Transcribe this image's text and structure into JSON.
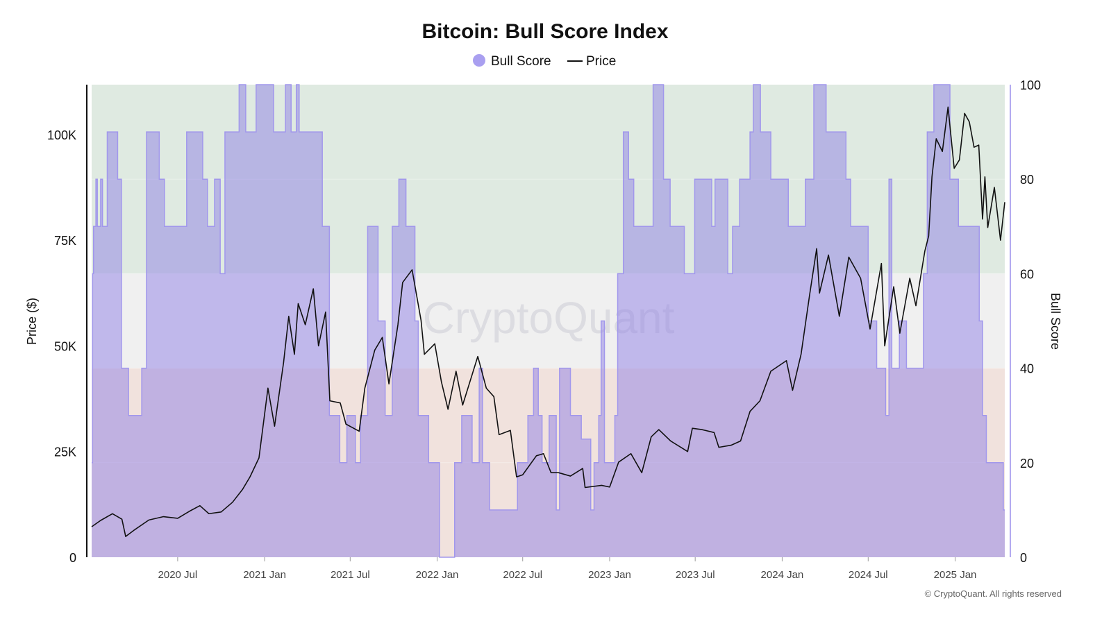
{
  "chart_data": {
    "type": "area",
    "title": "Bitcoin: Bull Score Index",
    "legend": [
      {
        "name": "Bull Score",
        "marker": "circle",
        "color": "#a99ff0"
      },
      {
        "name": "Price",
        "marker": "line",
        "color": "#111111"
      }
    ],
    "legend_position": "top-center",
    "watermark": "CryptoQuant",
    "footer": "© CryptoQuant. All rights reserved",
    "x_range": [
      "2020-01-01",
      "2025-04-16"
    ],
    "x_ticks": [
      {
        "date": "2020-07-01",
        "label": "2020 Jul"
      },
      {
        "date": "2021-01-01",
        "label": "2021 Jan"
      },
      {
        "date": "2021-07-01",
        "label": "2021 Jul"
      },
      {
        "date": "2022-01-01",
        "label": "2022 Jan"
      },
      {
        "date": "2022-07-01",
        "label": "2022 Jul"
      },
      {
        "date": "2023-01-01",
        "label": "2023 Jan"
      },
      {
        "date": "2023-07-01",
        "label": "2023 Jul"
      },
      {
        "date": "2024-01-01",
        "label": "2024 Jan"
      },
      {
        "date": "2024-07-01",
        "label": "2024 Jul"
      },
      {
        "date": "2025-01-01",
        "label": "2025 Jan"
      }
    ],
    "y_left": {
      "label": "Price ($)",
      "range": [
        0,
        111800
      ],
      "ticks": [
        {
          "value": 0,
          "label": "0"
        },
        {
          "value": 25000,
          "label": "25K"
        },
        {
          "value": 50000,
          "label": "50K"
        },
        {
          "value": 75000,
          "label": "75K"
        },
        {
          "value": 100000,
          "label": "100K"
        }
      ]
    },
    "y_right": {
      "label": "Bull Score",
      "range": [
        0,
        100
      ],
      "ticks": [
        {
          "value": 0,
          "label": "0"
        },
        {
          "value": 20,
          "label": "20"
        },
        {
          "value": 40,
          "label": "40"
        },
        {
          "value": 60,
          "label": "60"
        },
        {
          "value": 80,
          "label": "80"
        },
        {
          "value": 100,
          "label": "100"
        }
      ]
    },
    "bands": [
      {
        "from": 60,
        "to": 100,
        "color": "#dfeae1"
      },
      {
        "from": 40,
        "to": 60,
        "color": "#f0f0f0"
      },
      {
        "from": 0,
        "to": 40,
        "color": "#f1e2dd"
      }
    ],
    "series": [
      {
        "name": "Bull Score",
        "axis": "right",
        "style": "step-area",
        "points": [
          [
            "2020-01-01",
            20
          ],
          [
            "2020-01-03",
            60
          ],
          [
            "2020-01-05",
            70
          ],
          [
            "2020-01-10",
            80
          ],
          [
            "2020-01-13",
            70
          ],
          [
            "2020-01-20",
            80
          ],
          [
            "2020-01-24",
            70
          ],
          [
            "2020-02-03",
            90
          ],
          [
            "2020-02-25",
            80
          ],
          [
            "2020-03-04",
            40
          ],
          [
            "2020-03-19",
            30
          ],
          [
            "2020-04-16",
            40
          ],
          [
            "2020-04-26",
            90
          ],
          [
            "2020-05-23",
            80
          ],
          [
            "2020-06-03",
            70
          ],
          [
            "2020-07-20",
            90
          ],
          [
            "2020-08-23",
            80
          ],
          [
            "2020-09-02",
            70
          ],
          [
            "2020-09-17",
            80
          ],
          [
            "2020-09-29",
            60
          ],
          [
            "2020-10-09",
            90
          ],
          [
            "2020-11-08",
            100
          ],
          [
            "2020-11-22",
            90
          ],
          [
            "2020-12-14",
            100
          ],
          [
            "2021-01-20",
            90
          ],
          [
            "2021-02-14",
            100
          ],
          [
            "2021-02-26",
            90
          ],
          [
            "2021-03-09",
            100
          ],
          [
            "2021-03-15",
            90
          ],
          [
            "2021-05-03",
            70
          ],
          [
            "2021-05-18",
            30
          ],
          [
            "2021-06-09",
            20
          ],
          [
            "2021-06-24",
            30
          ],
          [
            "2021-07-12",
            20
          ],
          [
            "2021-07-23",
            30
          ],
          [
            "2021-08-07",
            70
          ],
          [
            "2021-08-29",
            50
          ],
          [
            "2021-09-13",
            30
          ],
          [
            "2021-09-28",
            70
          ],
          [
            "2021-10-12",
            80
          ],
          [
            "2021-10-27",
            70
          ],
          [
            "2021-11-15",
            50
          ],
          [
            "2021-11-22",
            30
          ],
          [
            "2021-12-14",
            20
          ],
          [
            "2022-01-06",
            0
          ],
          [
            "2022-02-07",
            20
          ],
          [
            "2022-02-22",
            30
          ],
          [
            "2022-03-16",
            20
          ],
          [
            "2022-03-31",
            40
          ],
          [
            "2022-04-07",
            20
          ],
          [
            "2022-04-22",
            10
          ],
          [
            "2022-06-20",
            20
          ],
          [
            "2022-07-12",
            30
          ],
          [
            "2022-07-24",
            40
          ],
          [
            "2022-08-03",
            30
          ],
          [
            "2022-08-11",
            20
          ],
          [
            "2022-08-26",
            30
          ],
          [
            "2022-09-10",
            10
          ],
          [
            "2022-09-17",
            40
          ],
          [
            "2022-10-10",
            30
          ],
          [
            "2022-11-02",
            25
          ],
          [
            "2022-11-22",
            10
          ],
          [
            "2022-11-29",
            20
          ],
          [
            "2022-12-09",
            30
          ],
          [
            "2022-12-14",
            50
          ],
          [
            "2022-12-21",
            20
          ],
          [
            "2023-01-12",
            30
          ],
          [
            "2023-01-18",
            60
          ],
          [
            "2023-01-30",
            90
          ],
          [
            "2023-02-10",
            80
          ],
          [
            "2023-02-21",
            70
          ],
          [
            "2023-04-03",
            100
          ],
          [
            "2023-04-25",
            80
          ],
          [
            "2023-05-09",
            70
          ],
          [
            "2023-06-08",
            60
          ],
          [
            "2023-06-30",
            80
          ],
          [
            "2023-08-05",
            70
          ],
          [
            "2023-08-12",
            80
          ],
          [
            "2023-09-08",
            60
          ],
          [
            "2023-09-18",
            70
          ],
          [
            "2023-10-03",
            80
          ],
          [
            "2023-10-25",
            90
          ],
          [
            "2023-11-01",
            100
          ],
          [
            "2023-11-16",
            90
          ],
          [
            "2023-12-08",
            80
          ],
          [
            "2024-01-14",
            70
          ],
          [
            "2024-02-19",
            80
          ],
          [
            "2024-03-08",
            100
          ],
          [
            "2024-04-03",
            90
          ],
          [
            "2024-05-15",
            80
          ],
          [
            "2024-05-25",
            70
          ],
          [
            "2024-07-01",
            50
          ],
          [
            "2024-07-19",
            40
          ],
          [
            "2024-08-07",
            30
          ],
          [
            "2024-08-14",
            80
          ],
          [
            "2024-08-20",
            40
          ],
          [
            "2024-09-05",
            50
          ],
          [
            "2024-09-20",
            40
          ],
          [
            "2024-10-26",
            60
          ],
          [
            "2024-11-03",
            90
          ],
          [
            "2024-11-17",
            100
          ],
          [
            "2024-12-21",
            80
          ],
          [
            "2025-01-08",
            70
          ],
          [
            "2025-02-21",
            50
          ],
          [
            "2025-02-28",
            30
          ],
          [
            "2025-03-08",
            20
          ],
          [
            "2025-04-13",
            10
          ],
          [
            "2025-04-16",
            10
          ]
        ]
      },
      {
        "name": "Price",
        "axis": "left",
        "style": "line",
        "points": [
          [
            "2020-01-01",
            7200
          ],
          [
            "2020-01-20",
            8700
          ],
          [
            "2020-02-14",
            10300
          ],
          [
            "2020-03-05",
            9000
          ],
          [
            "2020-03-13",
            4900
          ],
          [
            "2020-04-01",
            6500
          ],
          [
            "2020-05-01",
            8800
          ],
          [
            "2020-06-01",
            9600
          ],
          [
            "2020-07-01",
            9200
          ],
          [
            "2020-07-28",
            11000
          ],
          [
            "2020-08-17",
            12200
          ],
          [
            "2020-09-05",
            10300
          ],
          [
            "2020-10-01",
            10700
          ],
          [
            "2020-10-25",
            13000
          ],
          [
            "2020-11-15",
            16000
          ],
          [
            "2020-12-01",
            19000
          ],
          [
            "2020-12-20",
            23500
          ],
          [
            "2021-01-08",
            40000
          ],
          [
            "2021-01-22",
            31000
          ],
          [
            "2021-02-10",
            46000
          ],
          [
            "2021-02-21",
            57000
          ],
          [
            "2021-03-05",
            48000
          ],
          [
            "2021-03-13",
            60000
          ],
          [
            "2021-03-28",
            55000
          ],
          [
            "2021-04-14",
            63500
          ],
          [
            "2021-04-25",
            50000
          ],
          [
            "2021-05-10",
            58000
          ],
          [
            "2021-05-19",
            37000
          ],
          [
            "2021-06-10",
            36500
          ],
          [
            "2021-06-22",
            31500
          ],
          [
            "2021-07-20",
            29800
          ],
          [
            "2021-08-01",
            40000
          ],
          [
            "2021-08-22",
            49000
          ],
          [
            "2021-09-07",
            52000
          ],
          [
            "2021-09-21",
            41000
          ],
          [
            "2021-10-10",
            55000
          ],
          [
            "2021-10-20",
            65000
          ],
          [
            "2021-11-09",
            68000
          ],
          [
            "2021-11-28",
            56000
          ],
          [
            "2021-12-05",
            48000
          ],
          [
            "2021-12-27",
            50500
          ],
          [
            "2022-01-10",
            41500
          ],
          [
            "2022-01-24",
            35000
          ],
          [
            "2022-02-10",
            44000
          ],
          [
            "2022-02-24",
            36000
          ],
          [
            "2022-03-28",
            47500
          ],
          [
            "2022-04-15",
            40000
          ],
          [
            "2022-05-01",
            38000
          ],
          [
            "2022-05-12",
            29000
          ],
          [
            "2022-06-05",
            30000
          ],
          [
            "2022-06-18",
            19000
          ],
          [
            "2022-07-01",
            19500
          ],
          [
            "2022-07-30",
            24000
          ],
          [
            "2022-08-14",
            24500
          ],
          [
            "2022-08-30",
            20000
          ],
          [
            "2022-09-15",
            20000
          ],
          [
            "2022-10-10",
            19200
          ],
          [
            "2022-11-05",
            21000
          ],
          [
            "2022-11-10",
            16500
          ],
          [
            "2022-12-15",
            17000
          ],
          [
            "2023-01-01",
            16600
          ],
          [
            "2023-01-20",
            22500
          ],
          [
            "2023-02-15",
            24500
          ],
          [
            "2023-03-10",
            20000
          ],
          [
            "2023-03-30",
            28500
          ],
          [
            "2023-04-15",
            30200
          ],
          [
            "2023-05-10",
            27500
          ],
          [
            "2023-06-15",
            25000
          ],
          [
            "2023-06-25",
            30500
          ],
          [
            "2023-07-15",
            30200
          ],
          [
            "2023-08-10",
            29500
          ],
          [
            "2023-08-20",
            26000
          ],
          [
            "2023-09-15",
            26500
          ],
          [
            "2023-10-05",
            27500
          ],
          [
            "2023-10-25",
            34500
          ],
          [
            "2023-11-15",
            37000
          ],
          [
            "2023-12-08",
            44000
          ],
          [
            "2024-01-10",
            46500
          ],
          [
            "2024-01-23",
            39500
          ],
          [
            "2024-02-10",
            48000
          ],
          [
            "2024-02-28",
            62000
          ],
          [
            "2024-03-14",
            73000
          ],
          [
            "2024-03-20",
            62500
          ],
          [
            "2024-04-08",
            71500
          ],
          [
            "2024-05-01",
            57000
          ],
          [
            "2024-05-21",
            71000
          ],
          [
            "2024-06-15",
            66000
          ],
          [
            "2024-07-05",
            54000
          ],
          [
            "2024-07-29",
            69500
          ],
          [
            "2024-08-05",
            50000
          ],
          [
            "2024-08-24",
            64000
          ],
          [
            "2024-09-06",
            53000
          ],
          [
            "2024-09-27",
            66000
          ],
          [
            "2024-10-10",
            59500
          ],
          [
            "2024-10-29",
            72500
          ],
          [
            "2024-11-06",
            76000
          ],
          [
            "2024-11-13",
            90000
          ],
          [
            "2024-11-22",
            99000
          ],
          [
            "2024-12-05",
            96000
          ],
          [
            "2024-12-17",
            106500
          ],
          [
            "2024-12-30",
            92000
          ],
          [
            "2025-01-10",
            94000
          ],
          [
            "2025-01-21",
            105000
          ],
          [
            "2025-01-31",
            103000
          ],
          [
            "2025-02-10",
            97000
          ],
          [
            "2025-02-20",
            97500
          ],
          [
            "2025-02-28",
            80000
          ],
          [
            "2025-03-05",
            90000
          ],
          [
            "2025-03-11",
            78000
          ],
          [
            "2025-03-25",
            87500
          ],
          [
            "2025-04-07",
            75000
          ],
          [
            "2025-04-16",
            84000
          ]
        ]
      }
    ]
  }
}
